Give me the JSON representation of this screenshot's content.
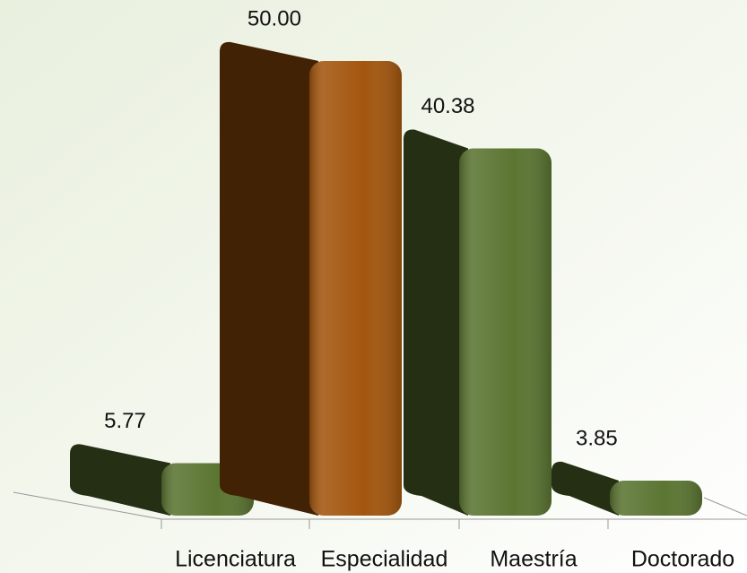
{
  "chart_data": {
    "type": "bar3d",
    "categories": [
      "Licenciatura",
      "Especialidad",
      "Maestría",
      "Doctorado"
    ],
    "values": [
      5.77,
      50,
      40.38,
      3.85
    ],
    "value_labels": [
      "5.77",
      "50.00",
      "40.38",
      "3.85"
    ],
    "colors": [
      "#5b7532",
      "#a3560e",
      "#5b7532",
      "#5b7532"
    ]
  }
}
